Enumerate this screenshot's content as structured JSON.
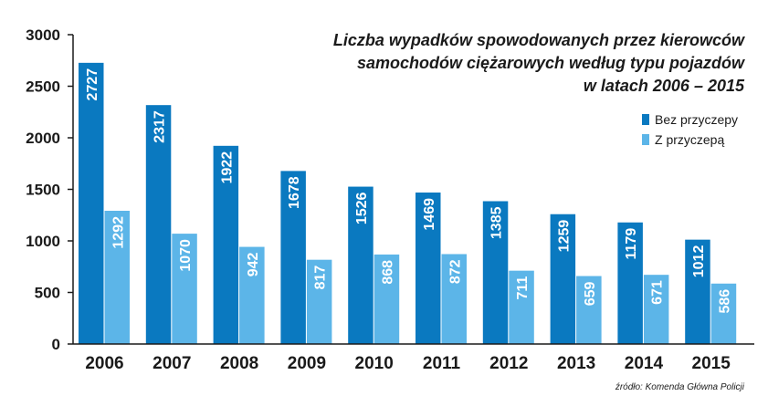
{
  "chart_data": {
    "type": "bar",
    "title_lines": [
      "Liczba wypadków spowodowanych przez kierowców",
      "samochodów ciężarowych według typu pojazdów",
      "w latach 2006 – 2015"
    ],
    "categories": [
      "2006",
      "2007",
      "2008",
      "2009",
      "2010",
      "2011",
      "2012",
      "2013",
      "2014",
      "2015"
    ],
    "series": [
      {
        "name": "Bez przyczepy",
        "color": "#0a79c0",
        "values": [
          2727,
          2317,
          1922,
          1678,
          1526,
          1469,
          1385,
          1259,
          1179,
          1012
        ]
      },
      {
        "name": "Z przyczepą",
        "color": "#5cb5e8",
        "values": [
          1292,
          1070,
          942,
          817,
          868,
          872,
          711,
          659,
          671,
          586
        ]
      }
    ],
    "yticks": [
      "0",
      "500",
      "1000",
      "1500",
      "2000",
      "2500",
      "3000"
    ],
    "ylim": [
      0,
      3000
    ],
    "legend_position": "top-right",
    "grid": false,
    "source": "źródło: Komenda Główna Policji"
  }
}
